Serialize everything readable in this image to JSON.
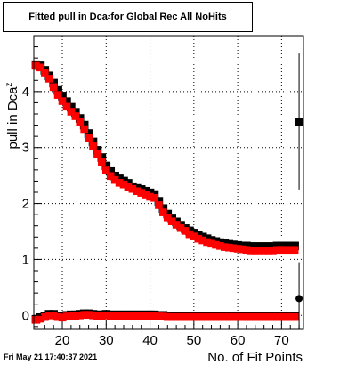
{
  "title": {
    "main": "Fitted pull in Dca",
    "sub": "z",
    "rest": " for Global Rec All NoHits"
  },
  "footer": "Fri May 21 17:40:37 2021",
  "colors": {
    "series1": "#000000",
    "series2": "#ff0000",
    "frame": "#000000",
    "grid": "#000000"
  },
  "chart_data": {
    "type": "scatter",
    "xlabel": "No. of Fit Points",
    "ylabel": {
      "main": "pull in Dca",
      "sub": "z"
    },
    "xlim": [
      13.5,
      75
    ],
    "ylim": [
      -0.25,
      5.0
    ],
    "xticks": [
      20,
      30,
      40,
      50,
      60,
      70
    ],
    "yticks": [
      0,
      1,
      2,
      3,
      4
    ],
    "grid": true,
    "series": [
      {
        "color": "black",
        "marker": "square",
        "x": [
          14,
          15,
          16,
          17,
          18,
          19,
          20,
          21,
          22,
          23,
          24,
          25,
          26,
          27,
          28,
          29,
          30,
          31,
          32,
          33,
          34,
          35,
          36,
          37,
          38,
          39,
          40,
          41,
          42,
          43,
          44,
          45,
          46,
          47,
          48,
          49,
          50,
          51,
          52,
          53,
          54,
          55,
          56,
          57,
          58,
          59,
          60,
          61,
          62,
          63,
          64,
          65,
          66,
          67,
          68,
          69,
          70,
          71,
          72,
          73
        ],
        "y": [
          4.48,
          4.46,
          4.38,
          4.28,
          4.15,
          4.02,
          3.92,
          3.82,
          3.72,
          3.63,
          3.52,
          3.4,
          3.25,
          3.1,
          2.95,
          2.82,
          2.67,
          2.57,
          2.49,
          2.44,
          2.4,
          2.36,
          2.3,
          2.27,
          2.25,
          2.22,
          2.19,
          2.16,
          2.04,
          1.91,
          1.81,
          1.74,
          1.67,
          1.61,
          1.55,
          1.51,
          1.47,
          1.43,
          1.4,
          1.37,
          1.34,
          1.32,
          1.3,
          1.28,
          1.27,
          1.26,
          1.25,
          1.24,
          1.24,
          1.23,
          1.23,
          1.23,
          1.23,
          1.23,
          1.23,
          1.24,
          1.24,
          1.24,
          1.24,
          1.24
        ]
      },
      {
        "color": "black",
        "marker": "square",
        "x": [
          14,
          15,
          16,
          17,
          18,
          19,
          20,
          21,
          22,
          23,
          24,
          25,
          26,
          27,
          28,
          29,
          30,
          31,
          32,
          33,
          34,
          35,
          36,
          37,
          38,
          39,
          40,
          41,
          42,
          43,
          44,
          45,
          46,
          47,
          48,
          49,
          50,
          51,
          52,
          53,
          54,
          55,
          56,
          57,
          58,
          59,
          60,
          61,
          62,
          63,
          64,
          65,
          66,
          67,
          68,
          69,
          70,
          71,
          72,
          73
        ],
        "y": [
          -0.07,
          -0.04,
          -0.01,
          0.02,
          0.02,
          -0.01,
          -0.02,
          0.0,
          0.01,
          0.01,
          0.02,
          0.03,
          0.03,
          0.02,
          0.01,
          0.01,
          0.02,
          0.01,
          0.01,
          0.01,
          0.01,
          0.01,
          0.01,
          0.01,
          0.01,
          0.01,
          0.01,
          0.01,
          0.0,
          0.0,
          -0.01,
          -0.01,
          -0.01,
          -0.01,
          -0.01,
          -0.01,
          -0.01,
          -0.01,
          -0.01,
          -0.01,
          -0.01,
          -0.01,
          -0.01,
          -0.01,
          -0.01,
          -0.01,
          -0.01,
          -0.01,
          -0.01,
          -0.01,
          -0.01,
          -0.01,
          -0.01,
          -0.01,
          -0.01,
          -0.01,
          -0.01,
          -0.01,
          -0.01,
          -0.01
        ]
      },
      {
        "color": "red",
        "marker": "square",
        "x": [
          14,
          15,
          16,
          17,
          18,
          19,
          20,
          21,
          22,
          23,
          24,
          25,
          26,
          27,
          28,
          29,
          30,
          31,
          32,
          33,
          34,
          35,
          36,
          37,
          38,
          39,
          40,
          41,
          42,
          43,
          44,
          45,
          46,
          47,
          48,
          49,
          50,
          51,
          52,
          53,
          54,
          55,
          56,
          57,
          58,
          59,
          60,
          61,
          62,
          63,
          64,
          65,
          66,
          67,
          68,
          69,
          70,
          71,
          72,
          73
        ],
        "y": [
          4.46,
          4.43,
          4.34,
          4.23,
          4.08,
          3.94,
          3.83,
          3.73,
          3.64,
          3.56,
          3.46,
          3.33,
          3.17,
          3.03,
          2.88,
          2.74,
          2.59,
          2.49,
          2.42,
          2.37,
          2.34,
          2.3,
          2.26,
          2.22,
          2.19,
          2.16,
          2.12,
          2.1,
          1.97,
          1.84,
          1.75,
          1.68,
          1.62,
          1.56,
          1.51,
          1.45,
          1.41,
          1.37,
          1.34,
          1.31,
          1.28,
          1.26,
          1.24,
          1.22,
          1.21,
          1.2,
          1.19,
          1.18,
          1.17,
          1.16,
          1.16,
          1.16,
          1.16,
          1.16,
          1.16,
          1.17,
          1.17,
          1.17,
          1.17,
          1.17
        ]
      },
      {
        "color": "red",
        "marker": "square",
        "x": [
          14,
          15,
          16,
          17,
          18,
          19,
          20,
          21,
          22,
          23,
          24,
          25,
          26,
          27,
          28,
          29,
          30,
          31,
          32,
          33,
          34,
          35,
          36,
          37,
          38,
          39,
          40,
          41,
          42,
          43,
          44,
          45,
          46,
          47,
          48,
          49,
          50,
          51,
          52,
          53,
          54,
          55,
          56,
          57,
          58,
          59,
          60,
          61,
          62,
          63,
          64,
          65,
          66,
          67,
          68,
          69,
          70,
          71,
          72,
          73
        ],
        "y": [
          -0.08,
          -0.06,
          -0.03,
          0.0,
          0.0,
          -0.03,
          -0.04,
          -0.02,
          -0.01,
          -0.01,
          0.0,
          0.01,
          0.01,
          0.0,
          -0.01,
          -0.01,
          0.0,
          -0.01,
          -0.01,
          -0.01,
          -0.01,
          -0.01,
          -0.01,
          -0.01,
          -0.01,
          -0.01,
          -0.01,
          -0.01,
          -0.02,
          -0.02,
          -0.03,
          -0.03,
          -0.03,
          -0.03,
          -0.03,
          -0.03,
          -0.03,
          -0.03,
          -0.03,
          -0.03,
          -0.03,
          -0.03,
          -0.03,
          -0.03,
          -0.03,
          -0.03,
          -0.03,
          -0.03,
          -0.03,
          -0.03,
          -0.03,
          -0.03,
          -0.03,
          -0.03,
          -0.03,
          -0.03,
          -0.03,
          -0.03,
          -0.03,
          -0.03
        ]
      }
    ],
    "overflow_points": [
      {
        "color": "black",
        "marker": "square",
        "x": 74,
        "y": 3.45,
        "err_low": 2.25,
        "err_high": 4.68
      },
      {
        "color": "black",
        "marker": "circle",
        "x": 74,
        "y": 0.3,
        "err_low": -0.25,
        "err_high": 0.95
      }
    ]
  }
}
